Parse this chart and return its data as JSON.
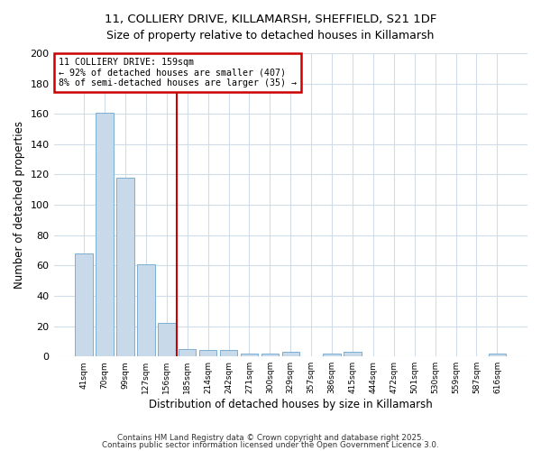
{
  "title1": "11, COLLIERY DRIVE, KILLAMARSH, SHEFFIELD, S21 1DF",
  "title2": "Size of property relative to detached houses in Killamarsh",
  "xlabel": "Distribution of detached houses by size in Killamarsh",
  "ylabel": "Number of detached properties",
  "categories": [
    "41sqm",
    "70sqm",
    "99sqm",
    "127sqm",
    "156sqm",
    "185sqm",
    "214sqm",
    "242sqm",
    "271sqm",
    "300sqm",
    "329sqm",
    "357sqm",
    "386sqm",
    "415sqm",
    "444sqm",
    "472sqm",
    "501sqm",
    "530sqm",
    "559sqm",
    "587sqm",
    "616sqm"
  ],
  "values": [
    68,
    161,
    118,
    61,
    22,
    5,
    4,
    4,
    2,
    2,
    3,
    0,
    2,
    3,
    0,
    0,
    0,
    0,
    0,
    0,
    2
  ],
  "bar_color": "#c8daea",
  "bar_edge_color": "#7bafd4",
  "vline_x_idx": 4,
  "vline_color": "#cc0000",
  "annotation_line1": "11 COLLIERY DRIVE: 159sqm",
  "annotation_line2": "← 92% of detached houses are smaller (407)",
  "annotation_line3": "8% of semi-detached houses are larger (35) →",
  "annotation_box_color": "#cc0000",
  "annotation_text_color": "#000000",
  "annotation_bg": "#ffffff",
  "ylim": [
    0,
    200
  ],
  "yticks": [
    0,
    20,
    40,
    60,
    80,
    100,
    120,
    140,
    160,
    180,
    200
  ],
  "footer1": "Contains HM Land Registry data © Crown copyright and database right 2025.",
  "footer2": "Contains public sector information licensed under the Open Government Licence 3.0.",
  "bg_color": "#ffffff",
  "plot_bg_color": "#ffffff",
  "grid_color": "#d0dce8"
}
